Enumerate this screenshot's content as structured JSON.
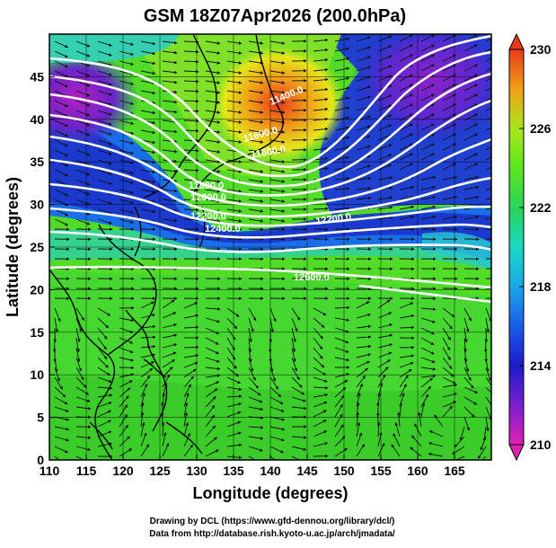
{
  "title": "GSM 18Z07Apr2026 (200.0hPa)",
  "xaxis": {
    "label": "Longitude (degrees)",
    "ticks": [
      "110",
      "115",
      "120",
      "125",
      "130",
      "135",
      "140",
      "145",
      "150",
      "155",
      "160",
      "165"
    ],
    "range": [
      110,
      170
    ]
  },
  "yaxis": {
    "label": "Latitude  (degrees)",
    "ticks": [
      "0",
      "5",
      "10",
      "15",
      "20",
      "25",
      "30",
      "35",
      "40",
      "45"
    ],
    "range": [
      0,
      50
    ]
  },
  "colorbar": {
    "ticks": [
      "210",
      "214",
      "218",
      "222",
      "226",
      "230"
    ],
    "range": [
      210,
      230
    ],
    "colors": [
      "#e020b0",
      "#7a1fd0",
      "#1c1cc8",
      "#1a5ce8",
      "#1aa8e8",
      "#1ad8c0",
      "#2ad45a",
      "#5ce61e",
      "#a8e61a",
      "#e6e61a",
      "#f0a018",
      "#e83a1a"
    ]
  },
  "contour_labels": [
    {
      "text": "11400.0"
    },
    {
      "text": "11600.0"
    },
    {
      "text": "11800.0"
    },
    {
      "text": "12000.0"
    },
    {
      "text": "12200.0"
    },
    {
      "text": "12400.0"
    },
    {
      "text": "12200.0"
    },
    {
      "text": "12600.0"
    },
    {
      "text": "11600.0"
    }
  ],
  "credits": {
    "line1": "Drawing by DCL (https://www.gfd-dennou.org/library/dcl/)",
    "line2": "Data from http://database.rish.kyoto-u.ac.jp/arch/jmadata/"
  }
}
